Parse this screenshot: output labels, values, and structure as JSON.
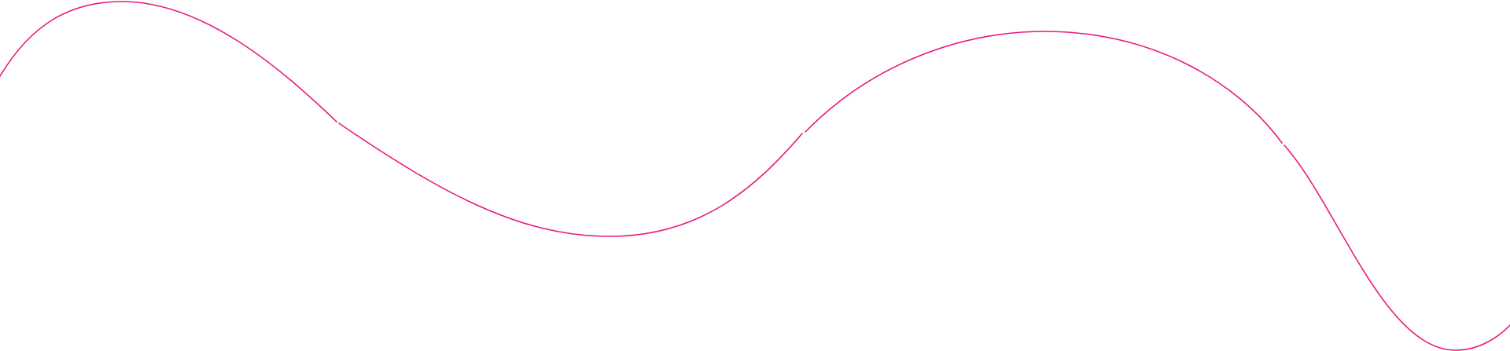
{
  "decoration": {
    "line_color": "#e8197d",
    "icon": "wavy-line"
  }
}
